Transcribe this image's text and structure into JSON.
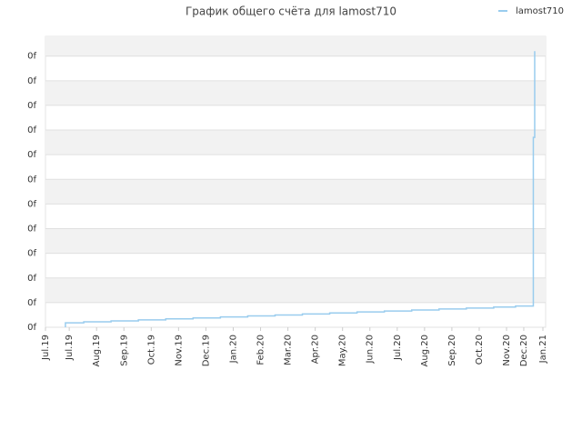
{
  "chart_data": {
    "type": "line",
    "title": "График общего счёта для lamost710",
    "legend": "top-right",
    "grid": true,
    "xlim": [
      0,
      18.3
    ],
    "xticks": [
      {
        "value": 0,
        "label": "Jul.19"
      },
      {
        "value": 0.87,
        "label": "Jul.19"
      },
      {
        "value": 1.87,
        "label": "Aug.19"
      },
      {
        "value": 2.87,
        "label": "Sep.19"
      },
      {
        "value": 3.87,
        "label": "Oct.19"
      },
      {
        "value": 4.87,
        "label": "Nov.19"
      },
      {
        "value": 5.87,
        "label": "Dec.19"
      },
      {
        "value": 6.87,
        "label": "Jan.20"
      },
      {
        "value": 7.87,
        "label": "Feb.20"
      },
      {
        "value": 8.87,
        "label": "Mar.20"
      },
      {
        "value": 9.87,
        "label": "Apr.20"
      },
      {
        "value": 10.87,
        "label": "May.20"
      },
      {
        "value": 11.87,
        "label": "Jun.20"
      },
      {
        "value": 12.87,
        "label": "Jul.20"
      },
      {
        "value": 13.87,
        "label": "Aug.20"
      },
      {
        "value": 14.87,
        "label": "Sep.20"
      },
      {
        "value": 15.87,
        "label": "Oct.20"
      },
      {
        "value": 16.87,
        "label": "Nov.20"
      },
      {
        "value": 17.5,
        "label": "Dec.20"
      },
      {
        "value": 18.2,
        "label": "Jan.21"
      }
    ],
    "ylim": [
      0,
      11.8
    ],
    "yticks": [
      {
        "value": 0,
        "label": "0f"
      },
      {
        "value": 1,
        "label": "0f"
      },
      {
        "value": 2,
        "label": "0f"
      },
      {
        "value": 3,
        "label": "0f"
      },
      {
        "value": 4,
        "label": "0f"
      },
      {
        "value": 5,
        "label": "0f"
      },
      {
        "value": 6,
        "label": "0f"
      },
      {
        "value": 7,
        "label": "0f"
      },
      {
        "value": 8,
        "label": "0f"
      },
      {
        "value": 9,
        "label": "0f"
      },
      {
        "value": 10,
        "label": "0f"
      },
      {
        "value": 11,
        "label": "0f"
      }
    ],
    "series": [
      {
        "name": "lamost710",
        "color": "#99ccee",
        "x": [
          0.73,
          0.73,
          1.4,
          1.4,
          2.4,
          2.4,
          3.4,
          3.4,
          4.4,
          4.4,
          5.4,
          5.4,
          6.4,
          6.4,
          7.4,
          7.4,
          8.4,
          8.4,
          9.4,
          9.4,
          10.4,
          10.4,
          11.4,
          11.4,
          12.4,
          12.4,
          13.4,
          13.4,
          14.4,
          14.4,
          15.4,
          15.4,
          16.4,
          16.4,
          17.2,
          17.2,
          17.85,
          17.85,
          17.9,
          17.9
        ],
        "values": [
          0,
          0.18,
          0.18,
          0.22,
          0.22,
          0.26,
          0.26,
          0.3,
          0.3,
          0.34,
          0.34,
          0.38,
          0.38,
          0.42,
          0.42,
          0.46,
          0.46,
          0.5,
          0.5,
          0.54,
          0.54,
          0.58,
          0.58,
          0.62,
          0.62,
          0.66,
          0.66,
          0.7,
          0.7,
          0.74,
          0.74,
          0.78,
          0.78,
          0.82,
          0.82,
          0.86,
          0.86,
          7.7,
          7.7,
          11.2
        ]
      }
    ]
  }
}
